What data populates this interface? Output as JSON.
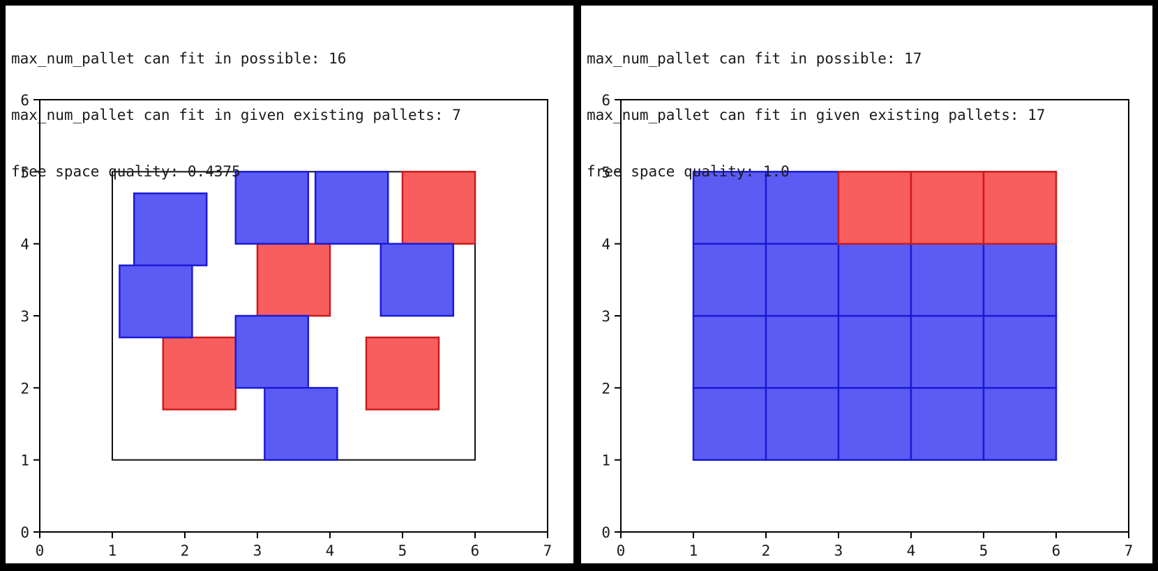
{
  "window": {
    "background": "#000000",
    "panel_background": "#ffffff"
  },
  "colors": {
    "blue_fill": "#5c5cf4",
    "blue_edge": "#1b1bd6",
    "red_fill": "#f95e5e",
    "red_edge": "#cc1b1b",
    "boundary_edge": "#111111",
    "axis": "#000000"
  },
  "chart_data": [
    {
      "type": "rect-packing",
      "panel": "left",
      "annotations": [
        "max_num_pallet can fit in possible: 16",
        "max_num_pallet can fit in given existing pallets: 7",
        "free space quality: 0.4375"
      ],
      "xlim": [
        0,
        7
      ],
      "ylim": [
        0,
        6
      ],
      "xticks": [
        0,
        1,
        2,
        3,
        4,
        5,
        6,
        7
      ],
      "yticks": [
        0,
        1,
        2,
        3,
        4,
        5,
        6
      ],
      "grid": false,
      "boundary": {
        "x": 1,
        "y": 1,
        "width": 5,
        "height": 4
      },
      "squares": [
        {
          "x": 5.0,
          "y": 4.0,
          "size": 1,
          "color": "red"
        },
        {
          "x": 3.0,
          "y": 3.0,
          "size": 1,
          "color": "red"
        },
        {
          "x": 1.7,
          "y": 1.7,
          "size": 1,
          "color": "red"
        },
        {
          "x": 4.5,
          "y": 1.7,
          "size": 1,
          "color": "red"
        },
        {
          "x": 1.3,
          "y": 3.7,
          "size": 1,
          "color": "blue"
        },
        {
          "x": 1.1,
          "y": 2.7,
          "size": 1,
          "color": "blue"
        },
        {
          "x": 2.7,
          "y": 4.0,
          "size": 1,
          "color": "blue"
        },
        {
          "x": 3.8,
          "y": 4.0,
          "size": 1,
          "color": "blue"
        },
        {
          "x": 2.7,
          "y": 2.0,
          "size": 1,
          "color": "blue"
        },
        {
          "x": 3.1,
          "y": 1.0,
          "size": 1,
          "color": "blue"
        },
        {
          "x": 4.7,
          "y": 3.0,
          "size": 1,
          "color": "blue"
        }
      ]
    },
    {
      "type": "rect-packing",
      "panel": "right",
      "annotations": [
        "max_num_pallet can fit in possible: 17",
        "max_num_pallet can fit in given existing pallets: 17",
        "free space quality: 1.0"
      ],
      "xlim": [
        0,
        7
      ],
      "ylim": [
        0,
        6
      ],
      "xticks": [
        0,
        1,
        2,
        3,
        4,
        5,
        6,
        7
      ],
      "yticks": [
        0,
        1,
        2,
        3,
        4,
        5,
        6
      ],
      "grid": false,
      "boundary": {
        "x": 1,
        "y": 1,
        "width": 5,
        "height": 4
      },
      "squares": [
        {
          "x": 1,
          "y": 1,
          "size": 1,
          "color": "blue"
        },
        {
          "x": 2,
          "y": 1,
          "size": 1,
          "color": "blue"
        },
        {
          "x": 3,
          "y": 1,
          "size": 1,
          "color": "blue"
        },
        {
          "x": 4,
          "y": 1,
          "size": 1,
          "color": "blue"
        },
        {
          "x": 5,
          "y": 1,
          "size": 1,
          "color": "blue"
        },
        {
          "x": 1,
          "y": 2,
          "size": 1,
          "color": "blue"
        },
        {
          "x": 2,
          "y": 2,
          "size": 1,
          "color": "blue"
        },
        {
          "x": 3,
          "y": 2,
          "size": 1,
          "color": "blue"
        },
        {
          "x": 4,
          "y": 2,
          "size": 1,
          "color": "blue"
        },
        {
          "x": 5,
          "y": 2,
          "size": 1,
          "color": "blue"
        },
        {
          "x": 1,
          "y": 3,
          "size": 1,
          "color": "blue"
        },
        {
          "x": 2,
          "y": 3,
          "size": 1,
          "color": "blue"
        },
        {
          "x": 3,
          "y": 3,
          "size": 1,
          "color": "blue"
        },
        {
          "x": 4,
          "y": 3,
          "size": 1,
          "color": "blue"
        },
        {
          "x": 5,
          "y": 3,
          "size": 1,
          "color": "blue"
        },
        {
          "x": 1,
          "y": 4,
          "size": 1,
          "color": "blue"
        },
        {
          "x": 2,
          "y": 4,
          "size": 1,
          "color": "blue"
        },
        {
          "x": 3,
          "y": 4,
          "size": 1,
          "color": "red"
        },
        {
          "x": 4,
          "y": 4,
          "size": 1,
          "color": "red"
        },
        {
          "x": 5,
          "y": 4,
          "size": 1,
          "color": "red"
        }
      ]
    }
  ]
}
